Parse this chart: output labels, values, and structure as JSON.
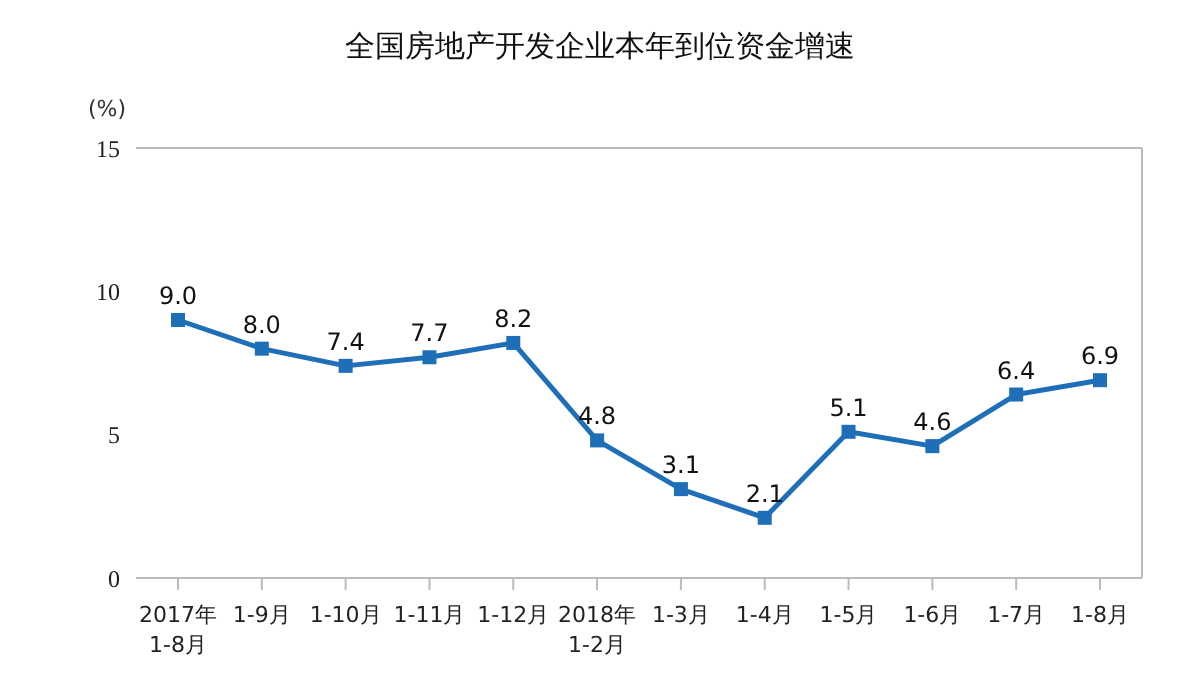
{
  "chart_data": {
    "type": "line",
    "title": "全国房地产开发企业本年到位资金增速",
    "ylabel": "(%)",
    "categories": [
      "2017年\n1-8月",
      "1-9月",
      "1-10月",
      "1-11月",
      "1-12月",
      "2018年\n1-2月",
      "1-3月",
      "1-4月",
      "1-5月",
      "1-6月",
      "1-7月",
      "1-8月"
    ],
    "series": [
      {
        "color": "#1f6fb8",
        "values": [
          9.0,
          8.0,
          7.4,
          7.7,
          8.2,
          4.8,
          3.1,
          2.1,
          5.1,
          4.6,
          6.4,
          6.9
        ],
        "value_labels": [
          "9.0",
          "8.0",
          "7.4",
          "7.7",
          "8.2",
          "4.8",
          "3.1",
          "2.1",
          "5.1",
          "4.6",
          "6.4",
          "6.9"
        ]
      }
    ],
    "ylim": [
      0,
      15
    ],
    "yticks": [
      0,
      5,
      10,
      15
    ],
    "grid": false,
    "legend": false,
    "marker": "square",
    "line_style": "solid"
  }
}
